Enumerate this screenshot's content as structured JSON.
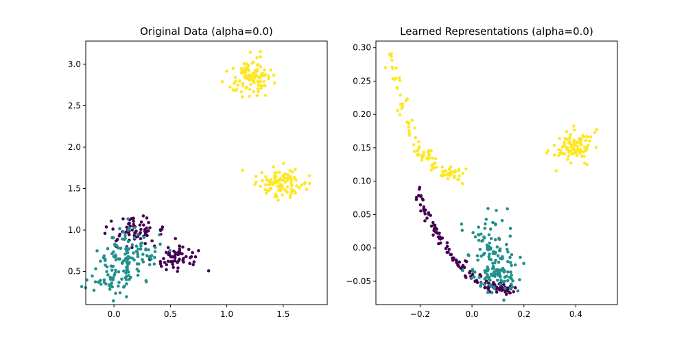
{
  "chart_data": [
    {
      "type": "scatter",
      "title": "Original Data (alpha=0.0)",
      "xlim": [
        -0.25,
        1.89
      ],
      "ylim": [
        0.1,
        3.28
      ],
      "xticks": [
        0.0,
        0.5,
        1.0,
        1.5
      ],
      "yticks": [
        0.5,
        1.0,
        1.5,
        2.0,
        2.5,
        3.0
      ],
      "xtick_labels": [
        "0.0",
        "0.5",
        "1.0",
        "1.5"
      ],
      "ytick_labels": [
        "0.5",
        "1.0",
        "1.5",
        "2.0",
        "2.5",
        "3.0"
      ],
      "grid": false,
      "series": [
        {
          "color": "#440154",
          "clusters": [
            {
              "center": [
                0.17,
                0.95
              ],
              "spread": [
                0.12,
                0.1
              ],
              "count": 70
            },
            {
              "center": [
                0.55,
                0.68
              ],
              "spread": [
                0.1,
                0.09
              ],
              "count": 60
            }
          ],
          "x": [],
          "y": []
        },
        {
          "color": "#21918c",
          "clusters": [
            {
              "center": [
                0.0,
                0.45
              ],
              "spread": [
                0.11,
                0.12
              ],
              "count": 80
            },
            {
              "center": [
                0.15,
                0.78
              ],
              "spread": [
                0.13,
                0.13
              ],
              "count": 80
            }
          ],
          "x": [],
          "y": []
        },
        {
          "color": "#fde725",
          "clusters": [
            {
              "center": [
                1.22,
                2.85
              ],
              "spread": [
                0.09,
                0.1
              ],
              "count": 100
            },
            {
              "center": [
                1.48,
                1.55
              ],
              "spread": [
                0.11,
                0.1
              ],
              "count": 100
            }
          ],
          "x": [],
          "y": []
        }
      ]
    },
    {
      "type": "scatter",
      "title": "Learned Representations (alpha=0.0)",
      "xlim": [
        -0.37,
        0.56
      ],
      "ylim": [
        -0.085,
        0.31
      ],
      "xticks": [
        -0.2,
        0.0,
        0.2,
        0.4
      ],
      "yticks": [
        -0.05,
        0.0,
        0.05,
        0.1,
        0.15,
        0.2,
        0.25,
        0.3
      ],
      "xtick_labels": [
        "−0.2",
        "0.0",
        "0.2",
        "0.4"
      ],
      "ytick_labels": [
        "−0.05",
        "0.00",
        "0.05",
        "0.10",
        "0.15",
        "0.20",
        "0.25",
        "0.30"
      ],
      "grid": false,
      "series": [
        {
          "color": "#440154",
          "curve": {
            "x": [
              -0.21,
              -0.15,
              -0.08,
              0.0,
              0.08,
              0.16
            ],
            "y": [
              0.085,
              0.03,
              -0.01,
              -0.045,
              -0.06,
              -0.062
            ],
            "count": 130,
            "jitter": [
              0.006,
              0.005
            ]
          },
          "x": [],
          "y": []
        },
        {
          "color": "#21918c",
          "clusters": [
            {
              "center": [
                0.07,
                0.0
              ],
              "spread": [
                0.05,
                0.025
              ],
              "count": 90
            },
            {
              "center": [
                0.1,
                -0.04
              ],
              "spread": [
                0.045,
                0.012
              ],
              "count": 70
            }
          ],
          "x": [],
          "y": []
        },
        {
          "color": "#fde725",
          "clusters": [
            {
              "center": [
                0.4,
                0.15
              ],
              "spread": [
                0.04,
                0.012
              ],
              "count": 100
            }
          ],
          "curve": {
            "x": [
              -0.33,
              -0.27,
              -0.21,
              -0.15,
              -0.09,
              -0.04
            ],
            "y": [
              0.295,
              0.22,
              0.15,
              0.13,
              0.11,
              0.105
            ],
            "count": 100,
            "jitter": [
              0.01,
              0.008
            ]
          },
          "x": [],
          "y": []
        }
      ]
    }
  ]
}
